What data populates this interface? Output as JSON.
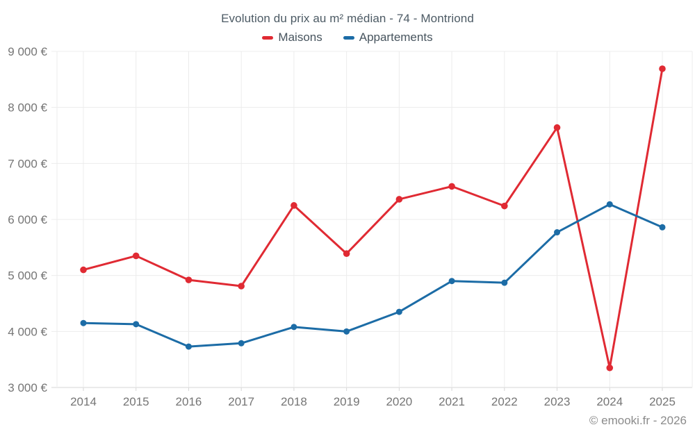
{
  "chart_data": {
    "type": "line",
    "title": "Evolution du prix au m² médian - 74 - Montriond",
    "footer": "© emooki.fr - 2026",
    "categories": [
      "2014",
      "2015",
      "2016",
      "2017",
      "2018",
      "2019",
      "2020",
      "2021",
      "2022",
      "2023",
      "2024",
      "2025"
    ],
    "series": [
      {
        "name": "Maisons",
        "color": "#e02a33",
        "values": [
          5100,
          5350,
          4920,
          4810,
          6250,
          5390,
          6360,
          6590,
          6240,
          7640,
          3350,
          8690
        ]
      },
      {
        "name": "Appartements",
        "color": "#1c6ca6",
        "values": [
          4150,
          4130,
          3730,
          3790,
          4080,
          4000,
          4350,
          4900,
          4870,
          5770,
          6270,
          5860
        ]
      }
    ],
    "xlabel": "",
    "ylabel": "",
    "ylim": [
      3000,
      9000
    ],
    "y_ticks": [
      3000,
      4000,
      5000,
      6000,
      7000,
      8000,
      9000
    ],
    "y_tick_labels": [
      "3 000 €",
      "4 000 €",
      "5 000 €",
      "6 000 €",
      "7 000 €",
      "8 000 €",
      "9 000 €"
    ],
    "grid": true,
    "legend_position": "top",
    "colors": {
      "grid": "#ececec",
      "axis_line": "#d6d6d6",
      "tick_label": "#757575",
      "title_text": "#4c5a64",
      "legend_text": "#47545e",
      "footer_text": "#8b8b8b"
    }
  }
}
